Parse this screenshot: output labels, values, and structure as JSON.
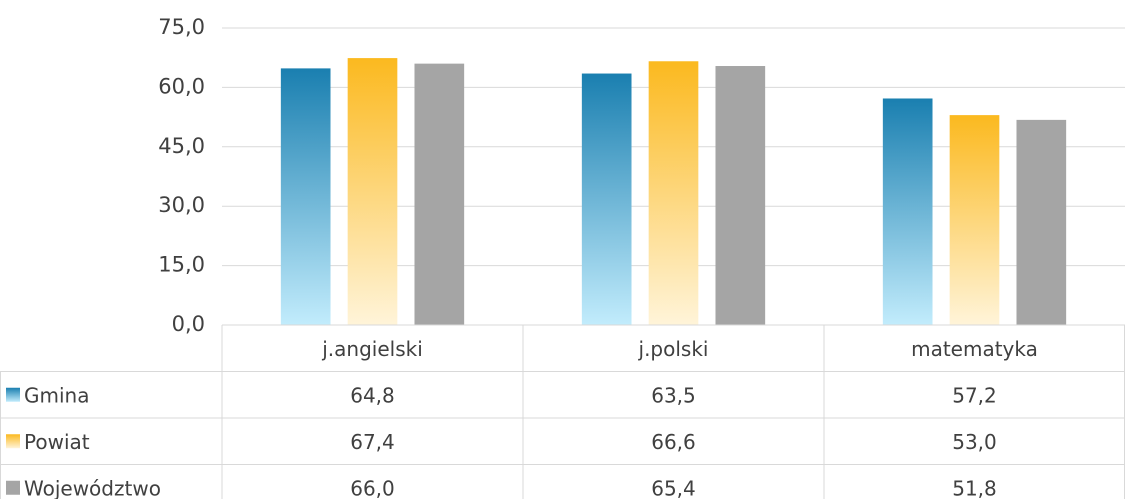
{
  "chart_data": {
    "type": "bar",
    "categories": [
      "j.angielski",
      "j.polski",
      "matematyka"
    ],
    "series": [
      {
        "name": "Gmina",
        "color": "#1a7fb0",
        "gradient_end": "#c2ecfc",
        "values": [
          64.8,
          63.5,
          57.2
        ],
        "value_labels": [
          "64,8",
          "63,5",
          "57,2"
        ]
      },
      {
        "name": "Powiat",
        "color": "#fbb91f",
        "gradient_end": "#fff4d9",
        "values": [
          67.4,
          66.6,
          53.0
        ],
        "value_labels": [
          "67,4",
          "66,6",
          "53,0"
        ]
      },
      {
        "name": "Województwo",
        "color": "#a5a5a5",
        "gradient_end": "#a5a5a5",
        "values": [
          66.0,
          65.4,
          51.8
        ],
        "value_labels": [
          "66,0",
          "65,4",
          "51,8"
        ]
      }
    ],
    "ylim": [
      0,
      75
    ],
    "yticks": [
      {
        "value": 0,
        "label": "0,0"
      },
      {
        "value": 15,
        "label": "15,0"
      },
      {
        "value": 30,
        "label": "30,0"
      },
      {
        "value": 45,
        "label": "45,0"
      },
      {
        "value": 60,
        "label": "60,0"
      },
      {
        "value": 75,
        "label": "75,0"
      }
    ],
    "grid": true,
    "data_table": true
  }
}
